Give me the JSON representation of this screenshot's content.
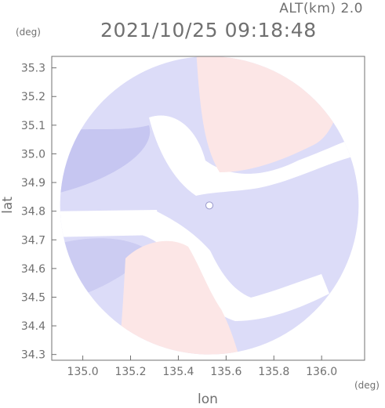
{
  "header": {
    "altitude_label": "ALT(km) 2.0",
    "datetime": "2021/10/25 09:18:48"
  },
  "chart_data": {
    "type": "heatmap",
    "title": "2021/10/25 09:18:48",
    "xlabel": "lon",
    "ylabel": "lat",
    "x_unit": "(deg)",
    "y_unit": "(deg)",
    "xlim": [
      134.87,
      136.18
    ],
    "ylim": [
      34.28,
      35.34
    ],
    "x_ticks": [
      135.0,
      135.2,
      135.4,
      135.6,
      135.8,
      136.0
    ],
    "x_tick_labels": [
      "135.0",
      "135.2",
      "135.4",
      "135.6",
      "135.8",
      "136.0"
    ],
    "y_ticks": [
      34.3,
      34.4,
      34.5,
      34.6,
      34.7,
      34.8,
      34.9,
      35.0,
      35.1,
      35.2,
      35.3
    ],
    "y_tick_labels": [
      "34.3",
      "34.4",
      "34.5",
      "34.6",
      "34.7",
      "34.8",
      "34.9",
      "35.0",
      "35.1",
      "35.2",
      "35.3"
    ],
    "radar_center": [
      135.53,
      34.82
    ],
    "radar_radius_lat": 0.52,
    "colors": {
      "negative": "#dcdcf8",
      "negative_strong": "#b8b8ec",
      "positive": "#fce6e6",
      "positive_strong": "#f4b8b8",
      "neutral": "#ffffff",
      "axis": "#707070"
    }
  }
}
